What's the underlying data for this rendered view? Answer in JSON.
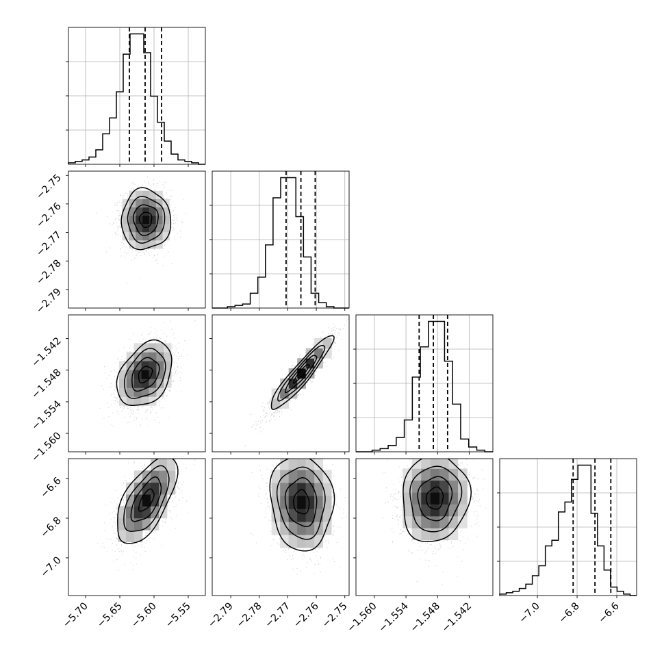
{
  "chart_data": {
    "type": "corner",
    "title": "",
    "parameters": [
      {
        "xticks": [
          "−5.70",
          "−5.65",
          "−5.60",
          "−5.55"
        ],
        "xtick_values": [
          -5.7,
          -5.65,
          -5.6,
          -5.55
        ],
        "range": [
          -5.725,
          -5.525
        ],
        "quantiles": [
          -5.636,
          -5.613,
          -5.589
        ],
        "hist": [
          1,
          2,
          3,
          5,
          10,
          21,
          32,
          50,
          76,
          90,
          90,
          77,
          47,
          29,
          16,
          7,
          3,
          2,
          1,
          0
        ]
      },
      {
        "xticks": [
          "−2.79",
          "−2.78",
          "−2.77",
          "−2.76",
          "−2.75"
        ],
        "xtick_values": [
          -2.79,
          -2.78,
          -2.77,
          -2.76,
          -2.75
        ],
        "yticks": [
          "−2.75",
          "−2.76",
          "−2.77",
          "−2.78",
          "−2.79"
        ],
        "ytick_values": [
          -2.75,
          -2.76,
          -2.77,
          -2.78,
          -2.79
        ],
        "range": [
          -2.7965,
          -2.7485
        ],
        "quantiles": [
          -2.7706,
          -2.7654,
          -2.7604
        ],
        "hist": [
          0,
          0,
          1,
          2,
          3,
          11,
          23,
          47,
          82,
          97,
          97,
          68,
          38,
          11,
          4,
          1,
          0,
          0
        ]
      },
      {
        "xticks": [
          "−1.560",
          "−1.554",
          "−1.548",
          "−1.542"
        ],
        "xtick_values": [
          -1.56,
          -1.554,
          -1.548,
          -1.542
        ],
        "yticks": [
          "−1.542",
          "−1.548",
          "−1.554",
          "−1.560"
        ],
        "ytick_values": [
          -1.542,
          -1.548,
          -1.554,
          -1.56
        ],
        "range": [
          -1.5635,
          -1.5375
        ],
        "quantiles": [
          -1.5515,
          -1.5488,
          -1.5461
        ],
        "hist": [
          0,
          0,
          1,
          2,
          4,
          9,
          20,
          47,
          66,
          82,
          82,
          57,
          30,
          8,
          3,
          1,
          0
        ]
      },
      {
        "xticks": [
          "−7.0",
          "−6.8",
          "−6.6"
        ],
        "xtick_values": [
          -7.0,
          -6.8,
          -6.6
        ],
        "yticks": [
          "−6.6",
          "−6.8",
          "−7.0"
        ],
        "ytick_values": [
          -6.6,
          -6.8,
          -7.0
        ],
        "range": [
          -7.19,
          -6.5
        ],
        "quantiles": [
          -6.82,
          -6.71,
          -6.63
        ],
        "hist": [
          1,
          2,
          3,
          5,
          8,
          14,
          21,
          35,
          39,
          59,
          66,
          82,
          92,
          92,
          58,
          35,
          18,
          6,
          3,
          1,
          0
        ]
      }
    ],
    "pairs": [
      {
        "row": 1,
        "col": 0,
        "center": [
          -5.612,
          -2.7655
        ],
        "sd": [
          0.018,
          0.0053
        ],
        "rho": 0.0
      },
      {
        "row": 2,
        "col": 0,
        "center": [
          -5.613,
          -1.5488
        ],
        "sd": [
          0.02,
          0.0031
        ],
        "rho": 0.35
      },
      {
        "row": 2,
        "col": 1,
        "center": [
          -2.7652,
          -1.5486
        ],
        "sd": [
          0.0055,
          0.0035
        ],
        "rho": 0.93
      },
      {
        "row": 3,
        "col": 0,
        "center": [
          -5.611,
          -6.71
        ],
        "sd": [
          0.022,
          0.11
        ],
        "rho": 0.62
      },
      {
        "row": 3,
        "col": 1,
        "center": [
          -2.7652,
          -6.72
        ],
        "sd": [
          0.0055,
          0.12
        ],
        "rho": -0.08
      },
      {
        "row": 3,
        "col": 2,
        "center": [
          -1.5485,
          -6.7
        ],
        "sd": [
          0.0032,
          0.11
        ],
        "rho": 0.08
      }
    ]
  }
}
